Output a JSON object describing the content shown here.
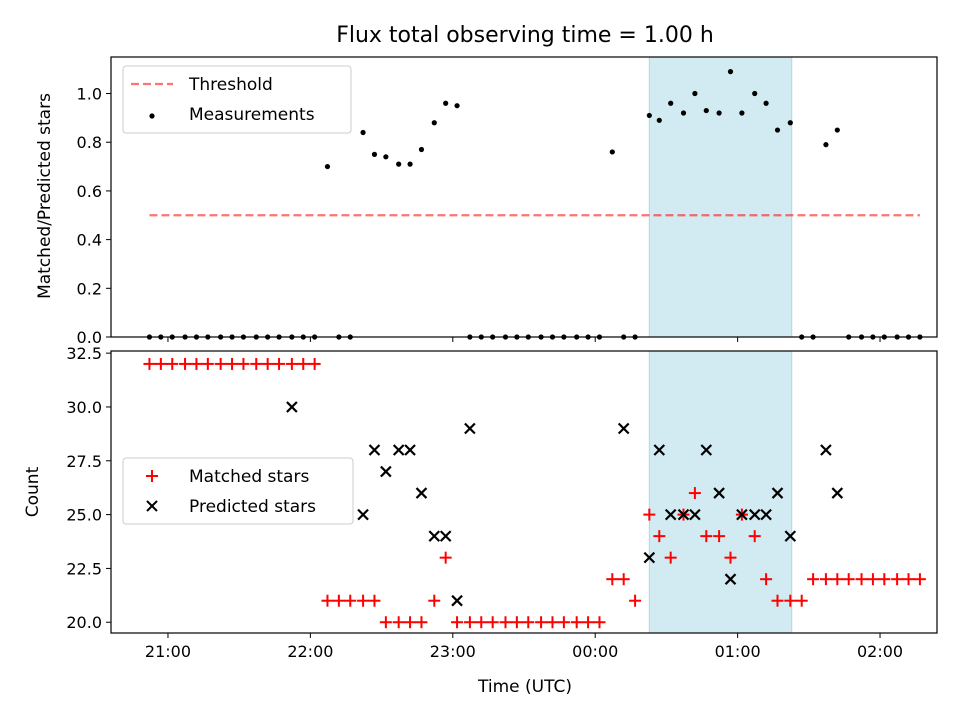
{
  "chart_data": {
    "title": "Flux total observing time = 1.00 h",
    "x_label": "Time (UTC)",
    "x_unit": "hours relative to 00:00 UTC",
    "x_ticks": [
      {
        "value": -3,
        "label": "21:00"
      },
      {
        "value": -2,
        "label": "22:00"
      },
      {
        "value": -1,
        "label": "23:00"
      },
      {
        "value": 0,
        "label": "00:00"
      },
      {
        "value": 1,
        "label": "01:00"
      },
      {
        "value": 2,
        "label": "02:00"
      }
    ],
    "xlim": [
      -3.4,
      2.4
    ],
    "highlight": {
      "x_start": 0.38,
      "x_end": 1.38,
      "color": "#add8e6"
    },
    "x": [
      -3.13,
      -3.05,
      -2.97,
      -2.88,
      -2.8,
      -2.72,
      -2.63,
      -2.55,
      -2.47,
      -2.38,
      -2.3,
      -2.22,
      -2.13,
      -2.05,
      -1.97,
      -1.88,
      -1.8,
      -1.72,
      -1.63,
      -1.55,
      -1.47,
      -1.38,
      -1.3,
      -1.22,
      -1.13,
      -1.05,
      -0.97,
      -0.88,
      -0.8,
      -0.72,
      -0.63,
      -0.55,
      -0.47,
      -0.38,
      -0.3,
      -0.22,
      -0.13,
      -0.05,
      0.03,
      0.12,
      0.2,
      0.28,
      0.38,
      0.45,
      0.53,
      0.62,
      0.7,
      0.78,
      0.87,
      0.95,
      1.03,
      1.12,
      1.2,
      1.28,
      1.37,
      1.45,
      1.53,
      1.62,
      1.7,
      1.78,
      1.87,
      1.95,
      2.03,
      2.12,
      2.2,
      2.28
    ],
    "panels": [
      {
        "ylabel": "Matched/Predicted stars",
        "ylim": [
          0,
          1.15
        ],
        "y_ticks": [
          {
            "value": 0.0,
            "label": "0.0"
          },
          {
            "value": 0.2,
            "label": "0.2"
          },
          {
            "value": 0.4,
            "label": "0.4"
          },
          {
            "value": 0.6,
            "label": "0.6"
          },
          {
            "value": 0.8,
            "label": "0.8"
          },
          {
            "value": 1.0,
            "label": "1.0"
          }
        ],
        "legend": {
          "position": "upper-left",
          "entries": [
            "Threshold",
            "Measurements"
          ]
        },
        "threshold": {
          "name": "Threshold",
          "value": 0.5,
          "x_range": [
            -3.13,
            2.28
          ],
          "color": "#ff0000",
          "style": "dashed"
        },
        "series": [
          {
            "name": "Measurements",
            "type": "scatter",
            "color": "#000000",
            "values": [
              0,
              0,
              0,
              0,
              0,
              0,
              0,
              0,
              0,
              0,
              0,
              0,
              0,
              0,
              0,
              0.7,
              0,
              0,
              0.84,
              0.75,
              0.74,
              0.71,
              0.71,
              0.77,
              0.88,
              0.96,
              0.95,
              0,
              0,
              0,
              0,
              0,
              0,
              0,
              0,
              0,
              0,
              0,
              0,
              0.76,
              0,
              0,
              0.91,
              0.89,
              0.96,
              0.92,
              1.0,
              0.93,
              0.92,
              1.09,
              0.92,
              1.0,
              0.96,
              0.85,
              0.88,
              0,
              0,
              0.79,
              0.85,
              0,
              0,
              0,
              0,
              0,
              0,
              0
            ]
          }
        ]
      },
      {
        "ylabel": "Count",
        "ylim": [
          19.5,
          32.6
        ],
        "y_ticks": [
          {
            "value": 20.0,
            "label": "20.0"
          },
          {
            "value": 22.5,
            "label": "22.5"
          },
          {
            "value": 25.0,
            "label": "25.0"
          },
          {
            "value": 27.5,
            "label": "27.5"
          },
          {
            "value": 30.0,
            "label": "30.0"
          },
          {
            "value": 32.5,
            "label": "32.5"
          }
        ],
        "legend": {
          "position": "center-left",
          "entries": [
            "Matched stars",
            "Predicted stars"
          ]
        },
        "series": [
          {
            "name": "Matched stars",
            "type": "scatter",
            "marker": "plus",
            "color": "#ff0000",
            "values": [
              32,
              32,
              32,
              32,
              32,
              32,
              32,
              32,
              32,
              32,
              32,
              32,
              32,
              32,
              32,
              21,
              21,
              21,
              21,
              21,
              20,
              20,
              20,
              20,
              21,
              23,
              20,
              20,
              20,
              20,
              20,
              20,
              20,
              20,
              20,
              20,
              20,
              20,
              20,
              22,
              22,
              21,
              25,
              24,
              23,
              25,
              26,
              24,
              24,
              23,
              25,
              24,
              22,
              21,
              21,
              21,
              22,
              22,
              22,
              22,
              22,
              22,
              22,
              22,
              22,
              22
            ]
          },
          {
            "name": "Predicted stars",
            "type": "scatter",
            "marker": "x",
            "color": "#000000",
            "x": [
              -2.13,
              -1.63,
              -1.55,
              -1.47,
              -1.38,
              -1.3,
              -1.22,
              -1.13,
              -1.05,
              -0.97,
              -0.88,
              0.2,
              0.38,
              0.45,
              0.53,
              0.62,
              0.7,
              0.78,
              0.87,
              0.95,
              1.03,
              1.12,
              1.2,
              1.28,
              1.37,
              1.62,
              1.7
            ],
            "values": [
              30,
              25,
              28,
              27,
              28,
              28,
              26,
              24,
              24,
              21,
              29,
              29,
              23,
              28,
              25,
              25,
              25,
              28,
              26,
              22,
              25,
              25,
              25,
              26,
              24,
              28,
              26
            ]
          }
        ]
      }
    ]
  }
}
